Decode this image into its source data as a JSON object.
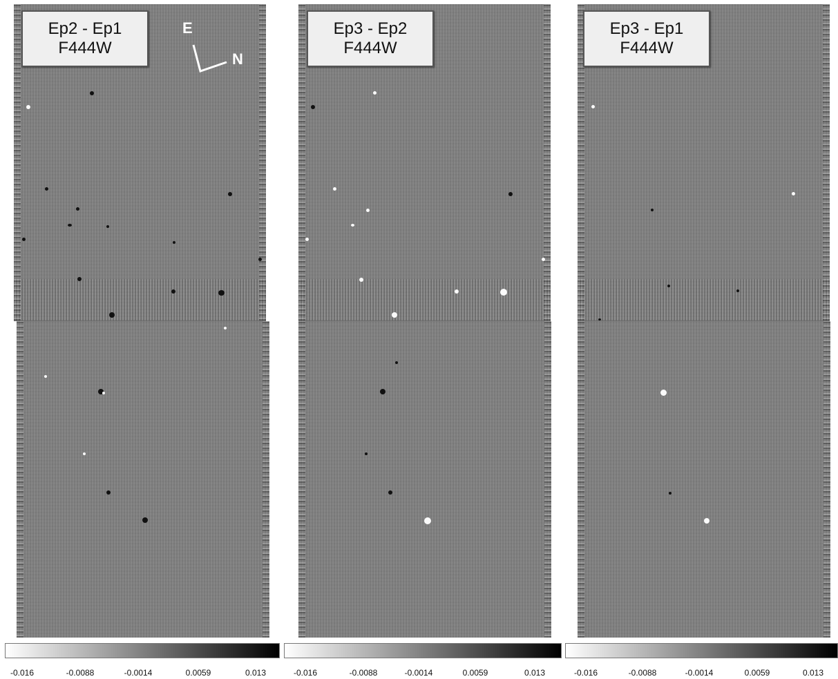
{
  "panels": [
    {
      "title": "Ep2 - Ep1",
      "filter": "F444W"
    },
    {
      "title": "Ep3 - Ep2",
      "filter": "F444W"
    },
    {
      "title": "Ep3 - Ep1",
      "filter": "F444W"
    }
  ],
  "compass": {
    "east": "E",
    "north": "N"
  },
  "colorbar": {
    "ticks": [
      "-0.016",
      "-0.0088",
      "-0.0014",
      "0.0059",
      "0.013"
    ],
    "min_color": "#ffffff",
    "max_color": "#000000"
  }
}
